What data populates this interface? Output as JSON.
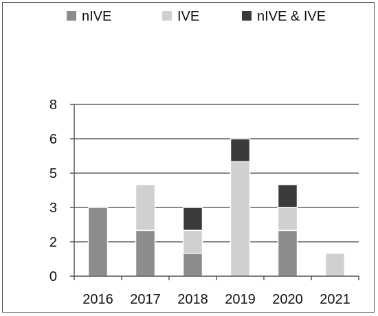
{
  "chart_data": {
    "type": "bar",
    "stacked": true,
    "categories": [
      "2016",
      "2017",
      "2018",
      "2019",
      "2020",
      "2021"
    ],
    "series": [
      {
        "name": "nIVE",
        "values": [
          3,
          2,
          1,
          0,
          2,
          0
        ],
        "color": "#8c8c8c"
      },
      {
        "name": "IVE",
        "values": [
          0,
          2,
          1,
          5,
          1,
          1
        ],
        "color": "#d0d0d0"
      },
      {
        "name": "nIVE & IVE",
        "values": [
          0,
          0,
          1,
          1,
          1,
          0
        ],
        "color": "#3a3a3a"
      }
    ],
    "y_ticks": [
      {
        "value": 0,
        "label": "0"
      },
      {
        "value": 1.5,
        "label": "2"
      },
      {
        "value": 3,
        "label": "3"
      },
      {
        "value": 4.5,
        "label": "5"
      },
      {
        "value": 6,
        "label": "6"
      },
      {
        "value": 7.5,
        "label": "8"
      }
    ],
    "ylim": [
      0,
      7.5
    ],
    "grid": true,
    "legend": "top",
    "xlabel": "",
    "ylabel": "",
    "title": ""
  }
}
